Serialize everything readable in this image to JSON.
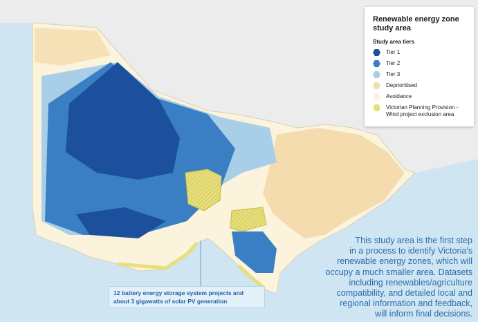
{
  "legend": {
    "title": [
      "Renewable energy zone",
      "study area"
    ],
    "subtitle": "Study area tiers",
    "items": [
      {
        "lines": [
          "Tier 1"
        ],
        "color": "#1c4f9c"
      },
      {
        "lines": [
          "Tier 2"
        ],
        "color": "#3a7fc4"
      },
      {
        "lines": [
          "Tier 3"
        ],
        "color": "#a9cfe8"
      },
      {
        "lines": [
          "Deprioritised"
        ],
        "color": "#f5dcae"
      },
      {
        "lines": [
          "Avoidance"
        ],
        "color": "#fbf3dc"
      },
      {
        "lines": [
          "Victorian Planning Provision -",
          "Wind project exclusion area"
        ],
        "color": "#e6df7c"
      }
    ]
  },
  "callout": [
    "12 battery energy storage system projects and",
    "about 3 gigawatts of solar PV generation"
  ],
  "description": [
    "This study area is the first step",
    "in a process to identify Victoria's",
    "renewable energy zones, which will",
    "occupy a much smaller area. Datasets",
    "including renewables/agriculture",
    "compatibility, and detailed local and",
    "regional information and feedback,",
    "will inform final decisions."
  ]
}
